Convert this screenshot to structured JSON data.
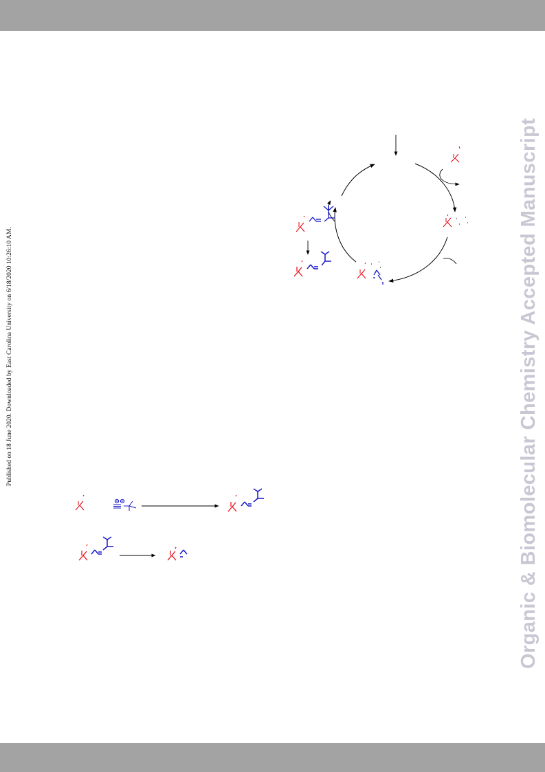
{
  "page": {
    "band_color": "#a3a3a3",
    "red": "#e8000b",
    "blue": "#1416c8"
  },
  "margin_note": {
    "text": "Published on 18 June 2020. Downloaded by East Carolina University on 6/18/2020 10:26:10 AM."
  },
  "watermark": {
    "text": "Organic & Biomolecular Chemistry Accepted Manuscript"
  },
  "figures": {
    "catalytic_cycle": {
      "description_icon": "catalytic-cycle-scheme"
    },
    "reaction_1": {
      "arrow_icon": "reaction-arrow-icon"
    },
    "reaction_2": {
      "arrow_icon": "reaction-arrow-icon"
    }
  }
}
